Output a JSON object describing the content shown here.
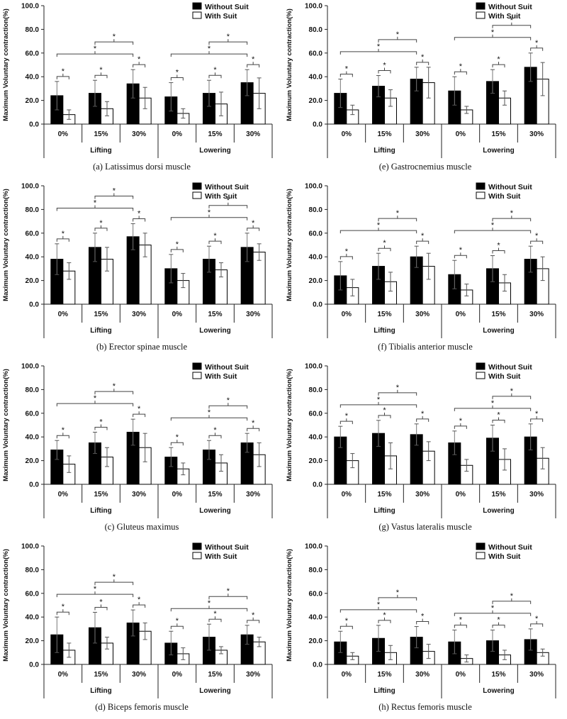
{
  "chart_data": [
    {
      "type": "bar",
      "caption": "(a) Latissimus dorsi muscle",
      "ylabel": "Maximum Voluntary contraction(%)",
      "ylim": [
        0,
        100
      ],
      "yticks": [
        "0.0",
        "20.0",
        "40.0",
        "60.0",
        "80.0",
        "100.0"
      ],
      "categories": [
        "0%",
        "15%",
        "30%",
        "0%",
        "15%",
        "30%"
      ],
      "groups": [
        "Lifting",
        "Lowering"
      ],
      "legend": [
        "Without Suit",
        "With Suit"
      ],
      "significance": "*",
      "series": [
        {
          "name": "Without Suit",
          "values": [
            24,
            26,
            34,
            23,
            26,
            35
          ],
          "errors": [
            12,
            11,
            12,
            12,
            11,
            11
          ]
        },
        {
          "name": "With Suit",
          "values": [
            8,
            13,
            22,
            9,
            17,
            26
          ],
          "errors": [
            4,
            6,
            9,
            4,
            10,
            13
          ]
        }
      ]
    },
    {
      "type": "bar",
      "caption": "(b) Erector spinae muscle",
      "ylabel": "Maximum Voluntary contraction(%)",
      "ylim": [
        0,
        100
      ],
      "yticks": [
        "0.0",
        "20.0",
        "40.0",
        "60.0",
        "80.0",
        "100.0"
      ],
      "categories": [
        "0%",
        "15%",
        "30%",
        "0%",
        "15%",
        "30%"
      ],
      "groups": [
        "Lifting",
        "Lowering"
      ],
      "legend": [
        "Without Suit",
        "With Suit"
      ],
      "significance": "*",
      "series": [
        {
          "name": "Without Suit",
          "values": [
            38,
            48,
            57,
            30,
            38,
            48
          ],
          "errors": [
            13,
            12,
            11,
            12,
            11,
            12
          ]
        },
        {
          "name": "With Suit",
          "values": [
            28,
            38,
            50,
            20,
            29,
            44
          ],
          "errors": [
            7,
            10,
            10,
            6,
            6,
            7
          ]
        }
      ]
    },
    {
      "type": "bar",
      "caption": "(c) Gluteus maximus",
      "ylabel": "Maximum Voluntary contraction(%)",
      "ylim": [
        0,
        100
      ],
      "yticks": [
        "0.0",
        "20.0",
        "40.0",
        "60.0",
        "80.0",
        "100.0"
      ],
      "categories": [
        "0%",
        "15%",
        "30%",
        "0%",
        "15%",
        "30%"
      ],
      "groups": [
        "Lifting",
        "Lowering"
      ],
      "legend": [
        "Without Suit",
        "With Suit"
      ],
      "significance": "*",
      "series": [
        {
          "name": "Without Suit",
          "values": [
            29,
            35,
            44,
            23,
            29,
            35
          ],
          "errors": [
            8,
            9,
            11,
            8,
            8,
            8
          ]
        },
        {
          "name": "With Suit",
          "values": [
            17,
            23,
            31,
            13,
            18,
            25
          ],
          "errors": [
            7,
            8,
            12,
            5,
            7,
            10
          ]
        }
      ]
    },
    {
      "type": "bar",
      "caption": "(d) Biceps femoris muscle",
      "ylabel": "Maximum Voluntary contraction(%)",
      "ylim": [
        0,
        100
      ],
      "yticks": [
        "0.0",
        "20.0",
        "40.0",
        "60.0",
        "80.0",
        "100.0"
      ],
      "categories": [
        "0%",
        "15%",
        "30%",
        "0%",
        "15%",
        "30%"
      ],
      "groups": [
        "Lifting",
        "Lowering"
      ],
      "legend": [
        "Without Suit",
        "With Suit"
      ],
      "significance": "*",
      "series": [
        {
          "name": "Without Suit",
          "values": [
            25,
            31,
            35,
            18,
            23,
            25
          ],
          "errors": [
            15,
            13,
            11,
            10,
            11,
            8
          ]
        },
        {
          "name": "With Suit",
          "values": [
            12,
            18,
            28,
            9,
            12,
            19
          ],
          "errors": [
            6,
            5,
            7,
            5,
            3,
            4
          ]
        }
      ]
    },
    {
      "type": "bar",
      "caption": "(e) Gastrocnemius muscle",
      "ylabel": "Maximum Voluntary contraction(%)",
      "ylim": [
        0,
        100
      ],
      "yticks": [
        "0.0",
        "20.0",
        "40.0",
        "60.0",
        "80.0",
        "100.0"
      ],
      "categories": [
        "0%",
        "15%",
        "30%",
        "0%",
        "15%",
        "30%"
      ],
      "groups": [
        "Lifting",
        "Lowering"
      ],
      "legend": [
        "Without Suit",
        "With Suit"
      ],
      "significance": "*",
      "series": [
        {
          "name": "Without Suit",
          "values": [
            26,
            32,
            38,
            28,
            36,
            48
          ],
          "errors": [
            12,
            9,
            10,
            12,
            10,
            12
          ]
        },
        {
          "name": "With Suit",
          "values": [
            12,
            22,
            35,
            12,
            22,
            38
          ],
          "errors": [
            4,
            7,
            13,
            3,
            6,
            14
          ]
        }
      ]
    },
    {
      "type": "bar",
      "caption": "(f) Tibialis anterior muscle",
      "ylabel": "Maximum Voluntary contraction(%)",
      "ylim": [
        0,
        100
      ],
      "yticks": [
        "0.0",
        "20.0",
        "40.0",
        "60.0",
        "80.0",
        "100.0"
      ],
      "categories": [
        "0%",
        "15%",
        "30%",
        "0%",
        "15%",
        "30%"
      ],
      "groups": [
        "Lifting",
        "Lowering"
      ],
      "legend": [
        "Without Suit",
        "With Suit"
      ],
      "significance": "*",
      "series": [
        {
          "name": "Without Suit",
          "values": [
            24,
            32,
            40,
            25,
            30,
            38
          ],
          "errors": [
            12,
            11,
            9,
            12,
            11,
            11
          ]
        },
        {
          "name": "With Suit",
          "values": [
            14,
            19,
            32,
            12,
            18,
            30
          ],
          "errors": [
            7,
            8,
            11,
            5,
            7,
            10
          ]
        }
      ]
    },
    {
      "type": "bar",
      "caption": "(g) Vastus lateralis muscle",
      "ylabel": "Maximum Voluntary contraction(%)",
      "ylim": [
        0,
        100
      ],
      "yticks": [
        "0.0",
        "20.0",
        "40.0",
        "60.0",
        "80.0",
        "100.0"
      ],
      "categories": [
        "0%",
        "15%",
        "30%",
        "0%",
        "15%",
        "30%"
      ],
      "groups": [
        "Lifting",
        "Lowering"
      ],
      "legend": [
        "Without Suit",
        "With Suit"
      ],
      "significance": "*",
      "series": [
        {
          "name": "Without Suit",
          "values": [
            40,
            43,
            42,
            35,
            39,
            40
          ],
          "errors": [
            9,
            11,
            9,
            10,
            11,
            11
          ]
        },
        {
          "name": "With Suit",
          "values": [
            20,
            24,
            28,
            16,
            21,
            22
          ],
          "errors": [
            6,
            11,
            8,
            5,
            9,
            9
          ]
        }
      ]
    },
    {
      "type": "bar",
      "caption": "(h) Rectus femoris muscle",
      "ylabel": "Maximum Voluntary contraction(%)",
      "ylim": [
        0,
        100
      ],
      "yticks": [
        "0.0",
        "20.0",
        "40.0",
        "60.0",
        "80.0",
        "100.0"
      ],
      "categories": [
        "0%",
        "15%",
        "30%",
        "0%",
        "15%",
        "30%"
      ],
      "groups": [
        "Lifting",
        "Lowering"
      ],
      "legend": [
        "Without Suit",
        "With Suit"
      ],
      "significance": "*",
      "series": [
        {
          "name": "Without Suit",
          "values": [
            19,
            22,
            23,
            19,
            20,
            21
          ],
          "errors": [
            9,
            11,
            9,
            10,
            9,
            9
          ]
        },
        {
          "name": "With Suit",
          "values": [
            7,
            10,
            11,
            5,
            8,
            10
          ],
          "errors": [
            3,
            6,
            6,
            3,
            4,
            3
          ]
        }
      ]
    }
  ]
}
